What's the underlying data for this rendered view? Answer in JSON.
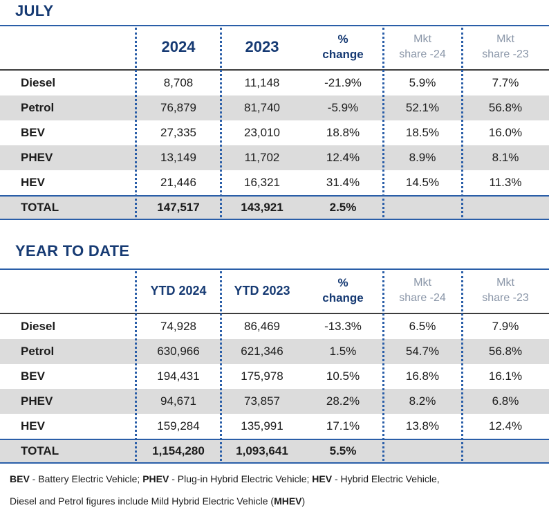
{
  "july": {
    "title": "JULY",
    "header": {
      "year1": "2024",
      "year2": "2023",
      "pct_line1": "%",
      "pct_line2": "change",
      "mkt1_line1": "Mkt",
      "mkt1_line2": "share -24",
      "mkt2_line1": "Mkt",
      "mkt2_line2": "share -23"
    },
    "rows": [
      {
        "label": "Diesel",
        "v1": "8,708",
        "v2": "11,148",
        "pct": "-21.9%",
        "m1": "5.9%",
        "m2": "7.7%"
      },
      {
        "label": "Petrol",
        "v1": "76,879",
        "v2": "81,740",
        "pct": "-5.9%",
        "m1": "52.1%",
        "m2": "56.8%"
      },
      {
        "label": "BEV",
        "v1": "27,335",
        "v2": "23,010",
        "pct": "18.8%",
        "m1": "18.5%",
        "m2": "16.0%"
      },
      {
        "label": "PHEV",
        "v1": "13,149",
        "v2": "11,702",
        "pct": "12.4%",
        "m1": "8.9%",
        "m2": "8.1%"
      },
      {
        "label": "HEV",
        "v1": "21,446",
        "v2": "16,321",
        "pct": "31.4%",
        "m1": "14.5%",
        "m2": "11.3%"
      }
    ],
    "total": {
      "label": "TOTAL",
      "v1": "147,517",
      "v2": "143,921",
      "pct": "2.5%"
    }
  },
  "ytd": {
    "title": "YEAR TO DATE",
    "header": {
      "year1": "YTD 2024",
      "year2": "YTD 2023",
      "pct_line1": "%",
      "pct_line2": "change",
      "mkt1_line1": "Mkt",
      "mkt1_line2": "share -24",
      "mkt2_line1": "Mkt",
      "mkt2_line2": "share -23"
    },
    "rows": [
      {
        "label": "Diesel",
        "v1": "74,928",
        "v2": "86,469",
        "pct": "-13.3%",
        "m1": "6.5%",
        "m2": "7.9%"
      },
      {
        "label": "Petrol",
        "v1": "630,966",
        "v2": "621,346",
        "pct": "1.5%",
        "m1": "54.7%",
        "m2": "56.8%"
      },
      {
        "label": "BEV",
        "v1": "194,431",
        "v2": "175,978",
        "pct": "10.5%",
        "m1": "16.8%",
        "m2": "16.1%"
      },
      {
        "label": "PHEV",
        "v1": "94,671",
        "v2": "73,857",
        "pct": "28.2%",
        "m1": "8.2%",
        "m2": "6.8%"
      },
      {
        "label": "HEV",
        "v1": "159,284",
        "v2": "135,991",
        "pct": "17.1%",
        "m1": "13.8%",
        "m2": "12.4%"
      }
    ],
    "total": {
      "label": "TOTAL",
      "v1": "1,154,280",
      "v2": "1,093,641",
      "pct": "5.5%"
    }
  },
  "footnote": {
    "line1": [
      {
        "text": "BEV",
        "bold": true
      },
      {
        "text": " - Battery Electric Vehicle; ",
        "bold": false
      },
      {
        "text": "PHEV",
        "bold": true
      },
      {
        "text": " - Plug-in Hybrid Electric Vehicle; ",
        "bold": false
      },
      {
        "text": "HEV",
        "bold": true
      },
      {
        "text": " - Hybrid Electric Vehicle,",
        "bold": false
      }
    ],
    "line2": [
      {
        "text": "Diesel and Petrol figures include Mild Hybrid Electric Vehicle (",
        "bold": false
      },
      {
        "text": "MHEV",
        "bold": true
      },
      {
        "text": ")",
        "bold": false
      }
    ]
  }
}
